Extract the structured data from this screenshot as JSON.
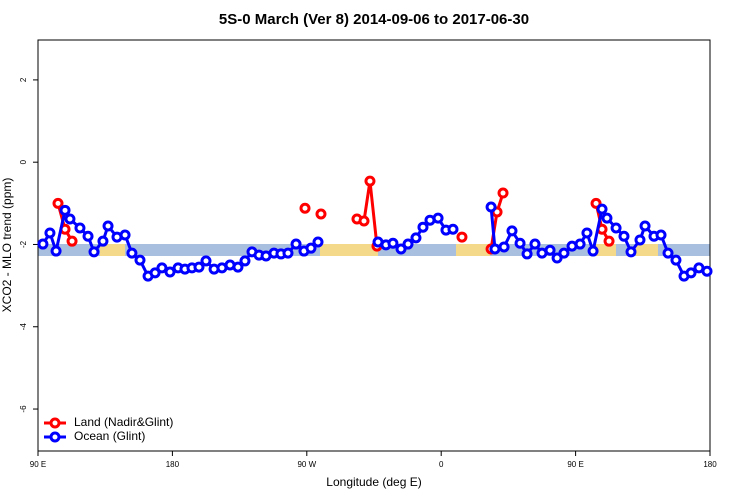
{
  "chart_data": {
    "type": "line",
    "title": "5S-0 March (Ver 8)   2014-09-06 to 2017-06-30",
    "x_label": "Longitude (deg E)",
    "y_label": "XCO2 - MLO trend (ppm)",
    "xlim": [
      90,
      540
    ],
    "ylim": [
      -7.02,
      2.97
    ],
    "xticks": [
      {
        "value": 90,
        "label": "90 E"
      },
      180,
      {
        "value": 270,
        "label": "90 W"
      },
      {
        "value": 360,
        "label": "0"
      },
      {
        "value": 450,
        "label": "90 E"
      },
      {
        "value": 540,
        "label": "180"
      }
    ],
    "yticks": [
      -6,
      -4,
      -2,
      0,
      2
    ],
    "legend": "bottom-left",
    "series": [
      {
        "name": "Land (Nadir&Glint)",
        "color": "#ff0000",
        "x": [
          103.4,
          108.1,
          112.8,
          200,
          268.8,
          280,
          279.5,
          290,
          303.6,
          308.3,
          312.3,
          317.0,
          330,
          373.9,
          380,
          393.4,
          397.4,
          401.4,
          420,
          463.7,
          467.7,
          472.4
        ],
        "values": [
          -1.0,
          -1.63,
          -1.92,
          null,
          -1.12,
          null,
          -1.26,
          null,
          -1.38,
          -1.43,
          -0.46,
          -2.04,
          null,
          -1.82,
          null,
          -2.11,
          -1.21,
          -0.75,
          null,
          -1.0,
          -1.63,
          -1.92
        ]
      },
      {
        "name": "Ocean (Glint)",
        "color": "#0000ff",
        "x": [
          93.3,
          98.0,
          102.1,
          108.1,
          111.4,
          118.1,
          123.5,
          127.5,
          133.5,
          136.9,
          142.9,
          148.3,
          152.9,
          158.3,
          163.7,
          168.4,
          173.0,
          178.4,
          183.8,
          188.4,
          193.1,
          197.8,
          202.5,
          207.9,
          213.2,
          218.6,
          223.9,
          228.6,
          233.3,
          238.0,
          242.7,
          248.0,
          252.7,
          257.4,
          262.8,
          268.1,
          272.8,
          277.5,
          300,
          317.7,
          323.0,
          327.7,
          333.1,
          337.8,
          343.1,
          347.8,
          352.5,
          357.9,
          363.2,
          367.9,
          390,
          393.4,
          396.0,
          402.1,
          407.4,
          412.8,
          417.5,
          422.8,
          427.5,
          432.9,
          437.6,
          442.2,
          447.6,
          453.0,
          457.6,
          461.7,
          467.7,
          471.0,
          477.1,
          482.4,
          487.1,
          493.1,
          496.5,
          502.5,
          507.2,
          511.9,
          517.2,
          522.6,
          527.3,
          532.6,
          538.0
        ],
        "values": [
          -1.99,
          -1.72,
          -2.16,
          -1.17,
          -1.38,
          -1.6,
          -1.8,
          -2.18,
          -1.92,
          -1.55,
          -1.82,
          -1.77,
          -2.21,
          -2.38,
          -2.77,
          -2.69,
          -2.57,
          -2.67,
          -2.57,
          -2.6,
          -2.57,
          -2.55,
          -2.4,
          -2.6,
          -2.57,
          -2.5,
          -2.55,
          -2.4,
          -2.18,
          -2.26,
          -2.28,
          -2.21,
          -2.23,
          -2.21,
          -1.99,
          -2.16,
          -2.09,
          -1.94,
          null,
          -1.94,
          -2.01,
          -1.97,
          -2.11,
          -1.99,
          -1.84,
          -1.58,
          -1.41,
          -1.36,
          -1.65,
          -1.63,
          null,
          -1.09,
          -2.11,
          -2.06,
          -1.67,
          -1.97,
          -2.23,
          -1.99,
          -2.21,
          -2.14,
          -2.33,
          -2.21,
          -2.04,
          -1.99,
          -1.72,
          -2.16,
          -1.14,
          -1.36,
          -1.6,
          -1.8,
          -2.18,
          -1.89,
          -1.55,
          -1.8,
          -1.77,
          -2.21,
          -2.38,
          -2.77,
          -2.69,
          -2.57,
          -2.65
        ]
      }
    ]
  }
}
